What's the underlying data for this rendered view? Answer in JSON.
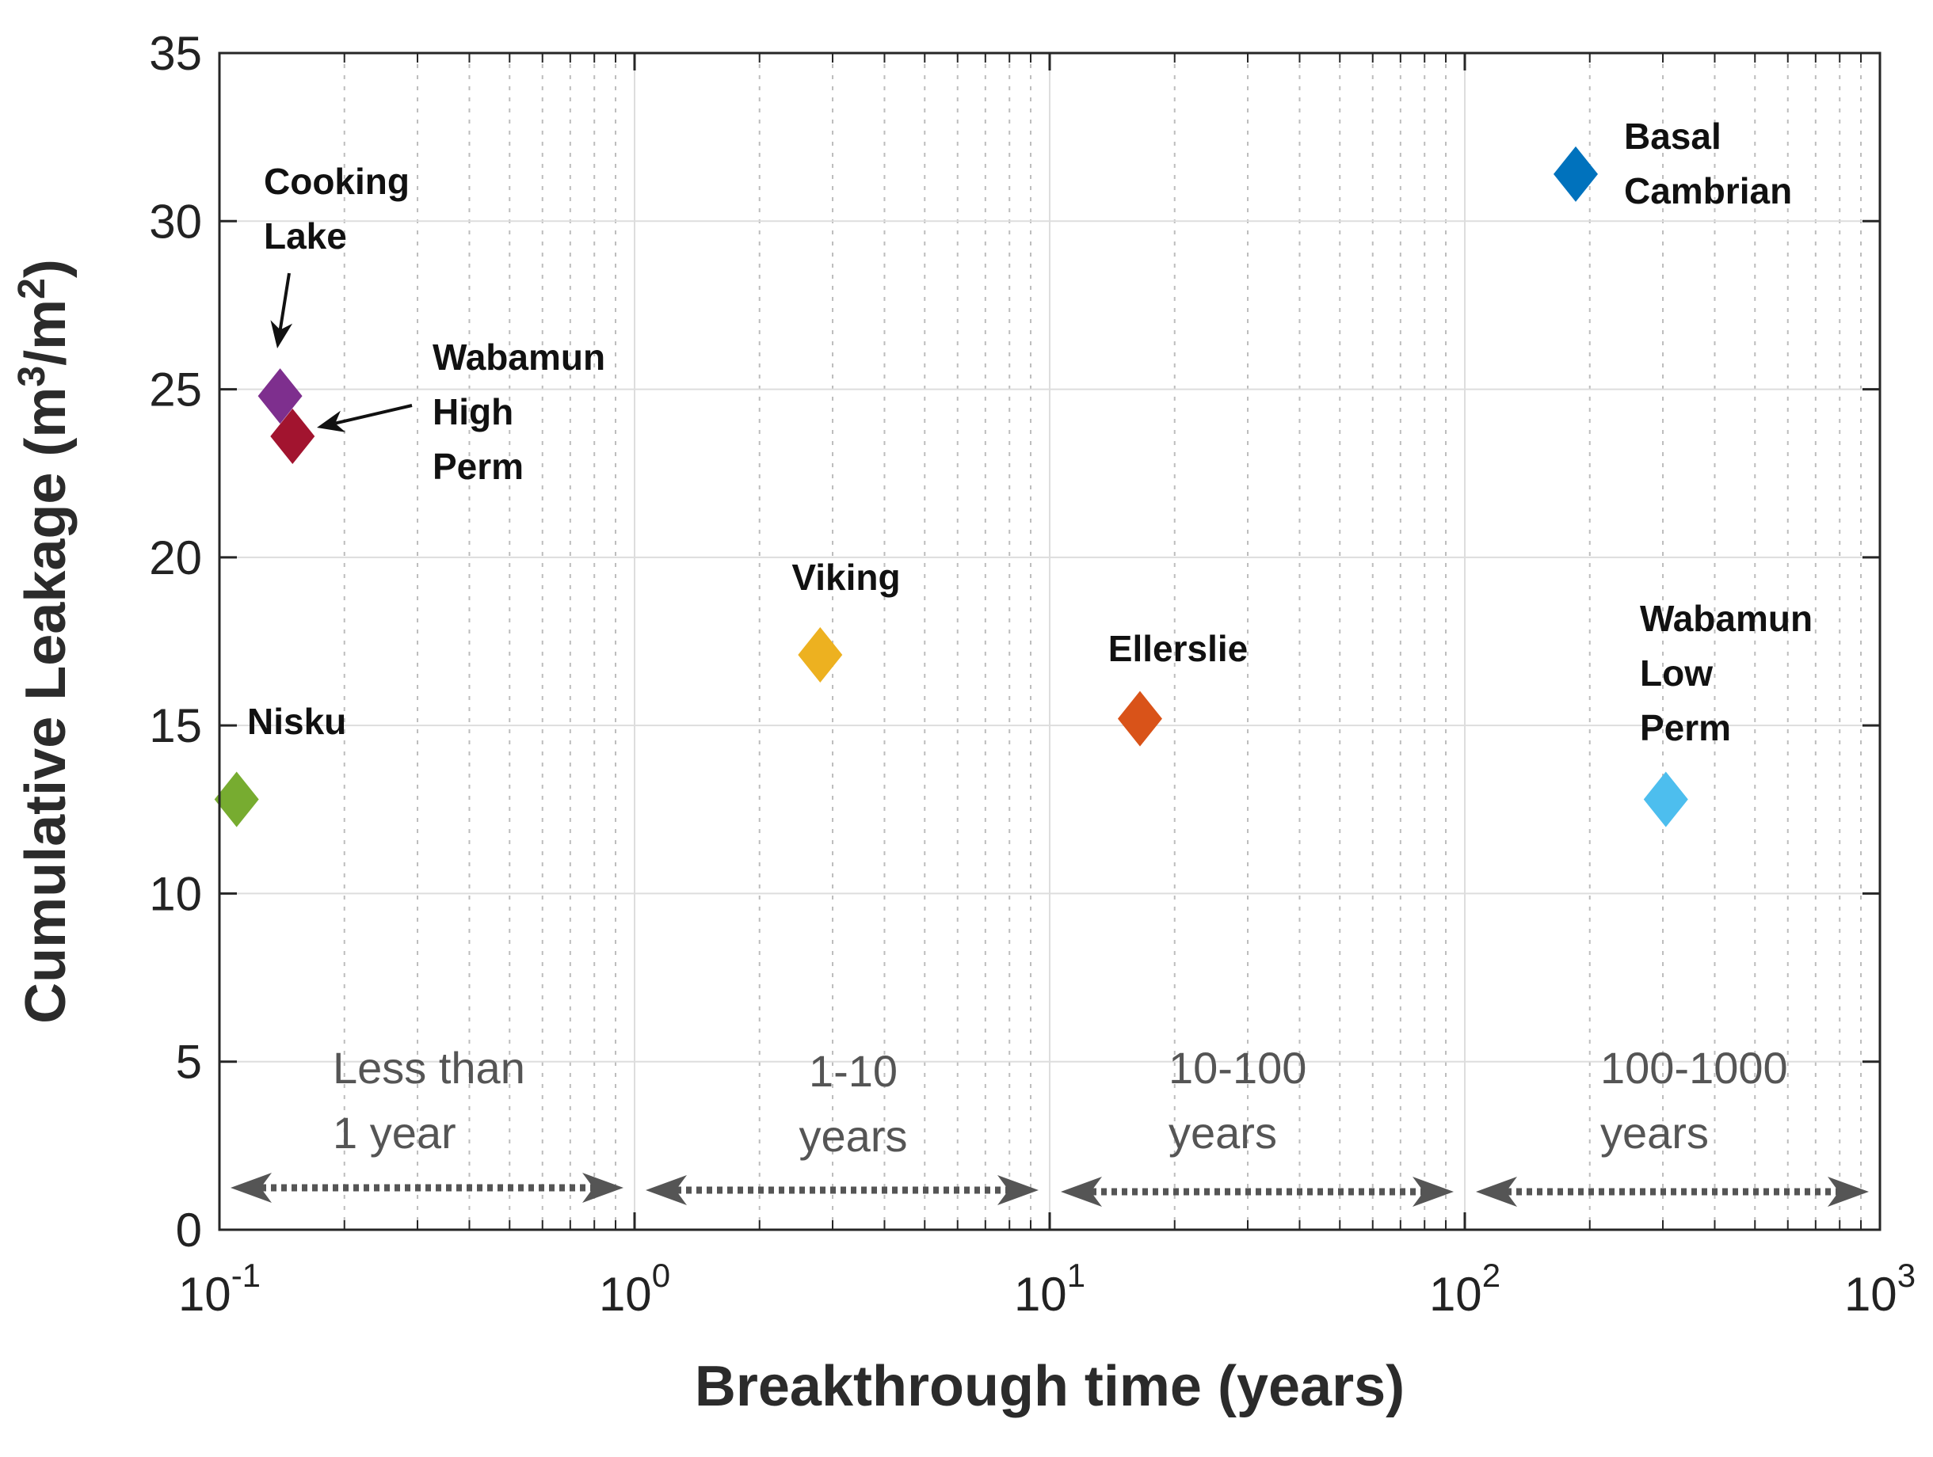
{
  "chart_data": {
    "type": "scatter",
    "title": "",
    "xlabel": "Breakthrough time (years)",
    "ylabel_main": "Cumulative Leakage (m",
    "ylabel_sup1": "3",
    "ylabel_mid": "/m",
    "ylabel_sup2": "2",
    "ylabel_end": ")",
    "xscale": "log",
    "xlim": [
      0.1,
      1000
    ],
    "ylim": [
      0,
      35
    ],
    "grid": true,
    "x_ticks": [
      {
        "value": 0.1,
        "base": "10",
        "exp": "-1"
      },
      {
        "value": 1,
        "base": "10",
        "exp": "0"
      },
      {
        "value": 10,
        "base": "10",
        "exp": "1"
      },
      {
        "value": 100,
        "base": "10",
        "exp": "2"
      },
      {
        "value": 1000,
        "base": "10",
        "exp": "3"
      }
    ],
    "y_ticks": [
      0,
      5,
      10,
      15,
      20,
      25,
      30,
      35
    ],
    "points": [
      {
        "name": "Nisku",
        "lines": [
          "Nisku"
        ],
        "x": 0.11,
        "y": 12.8,
        "color": "#77ac30"
      },
      {
        "name": "Cooking Lake",
        "lines": [
          "Cooking",
          "Lake"
        ],
        "x": 0.14,
        "y": 24.8,
        "color": "#7e2f8e"
      },
      {
        "name": "Wabamun High Perm",
        "lines": [
          "Wabamun",
          "High",
          "Perm"
        ],
        "x": 0.15,
        "y": 23.6,
        "color": "#a2142f"
      },
      {
        "name": "Viking",
        "lines": [
          "Viking"
        ],
        "x": 2.8,
        "y": 17.1,
        "color": "#edb120"
      },
      {
        "name": "Ellerslie",
        "lines": [
          "Ellerslie"
        ],
        "x": 16.5,
        "y": 15.2,
        "color": "#d95319"
      },
      {
        "name": "Basal Cambrian",
        "lines": [
          "Basal",
          "Cambrian"
        ],
        "x": 185,
        "y": 31.4,
        "color": "#0072bd"
      },
      {
        "name": "Wabamun Low Perm",
        "lines": [
          "Wabamun",
          "Low",
          "Perm"
        ],
        "x": 305,
        "y": 12.8,
        "color": "#4dbeee"
      }
    ],
    "annotations": [
      {
        "target": "Cooking Lake",
        "type": "arrow"
      },
      {
        "target": "Wabamun High Perm",
        "type": "arrow"
      }
    ],
    "regions": [
      {
        "lines": [
          "Less than",
          "1 year"
        ],
        "x_start": 0.1,
        "x_end": 1
      },
      {
        "lines": [
          "1-10",
          "years"
        ],
        "x_start": 1,
        "x_end": 10
      },
      {
        "lines": [
          "10-100",
          "years"
        ],
        "x_start": 10,
        "x_end": 100
      },
      {
        "lines": [
          "100-1000",
          "years"
        ],
        "x_start": 100,
        "x_end": 1000
      }
    ]
  }
}
